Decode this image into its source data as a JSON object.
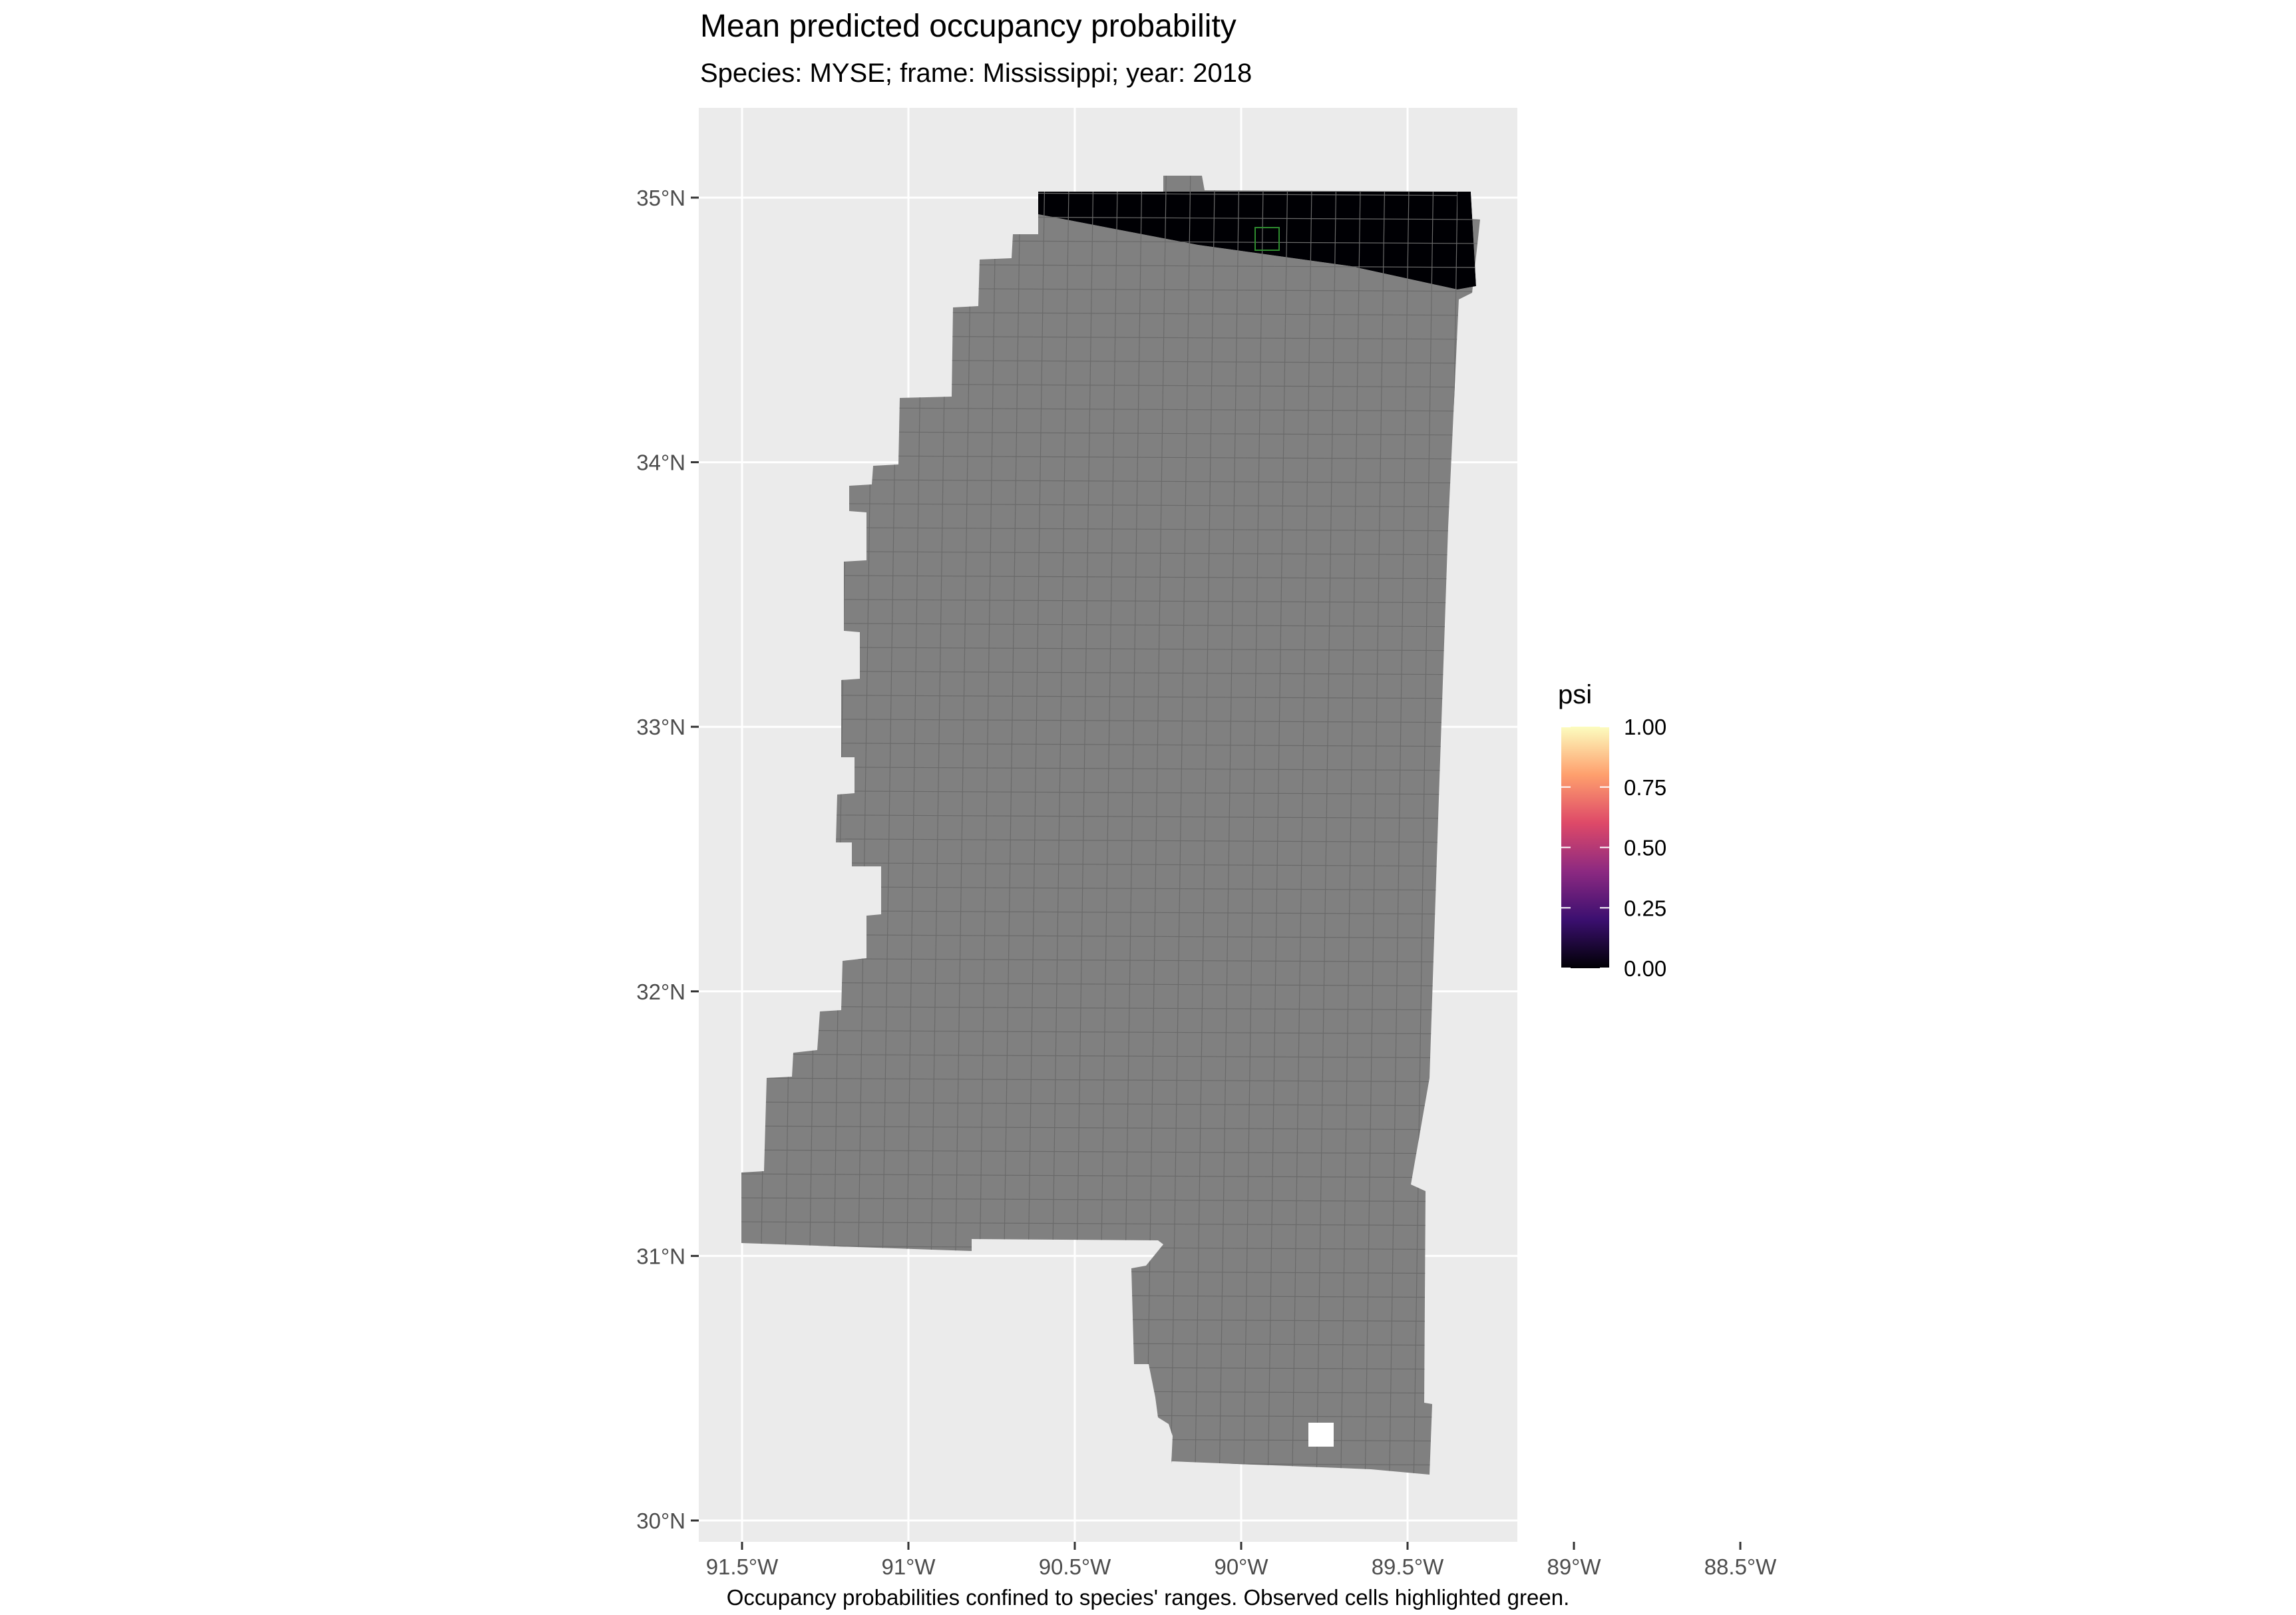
{
  "title": "Mean predicted occupancy probability",
  "subtitle": "Species: MYSE; frame: Mississippi; year: 2018",
  "caption": "Occupancy probabilities confined to species' ranges. Observed cells highlighted green.",
  "colors": {
    "panel_bg": "#EBEBEB",
    "grid": "#FFFFFF",
    "outside_range_cell": "#808080",
    "cell_border": "#6A6A6A",
    "psi_zero_cell": "#000004",
    "observed_highlight": "#2E8B2E",
    "axis_text": "#4D4D4D"
  },
  "legend": {
    "title": "psi",
    "breaks": [
      "1.00",
      "0.75",
      "0.50",
      "0.25",
      "0.00"
    ],
    "values": [
      1.0,
      0.75,
      0.5,
      0.25,
      0.0
    ],
    "palette": "magma",
    "stops": [
      "#000004",
      "#3B0F70",
      "#8C2981",
      "#DE4968",
      "#FE9F6D",
      "#FCFDBF"
    ]
  },
  "axes": {
    "x_ticks": [
      {
        "value": -91.5,
        "label": "91.5°W"
      },
      {
        "value": -91.0,
        "label": "91°W"
      },
      {
        "value": -90.5,
        "label": "90.5°W"
      },
      {
        "value": -90.0,
        "label": "90°W"
      },
      {
        "value": -89.5,
        "label": "89.5°W"
      },
      {
        "value": -89.0,
        "label": "89°W"
      },
      {
        "value": -88.5,
        "label": "88.5°W"
      }
    ],
    "y_ticks": [
      {
        "value": 35,
        "label": "35°N"
      },
      {
        "value": 34,
        "label": "34°N"
      },
      {
        "value": 33,
        "label": "33°N"
      },
      {
        "value": 32,
        "label": "32°N"
      },
      {
        "value": 31,
        "label": "31°N"
      },
      {
        "value": 30,
        "label": "30°N"
      }
    ]
  },
  "chart_data": {
    "type": "heatmap",
    "title": "Mean predicted occupancy probability",
    "subtitle": "Species: MYSE; frame: Mississippi; year: 2018",
    "fill_variable": "psi",
    "fill_range": [
      0,
      1
    ],
    "grid_lines": true,
    "legend_position": "right",
    "regions": [
      {
        "name": "northern band (in range)",
        "psi": 0.0,
        "lat_range": [
          34.75,
          35.05
        ]
      },
      {
        "name": "remainder of state (outside range)",
        "psi": null
      }
    ],
    "observed_cells": 1
  }
}
